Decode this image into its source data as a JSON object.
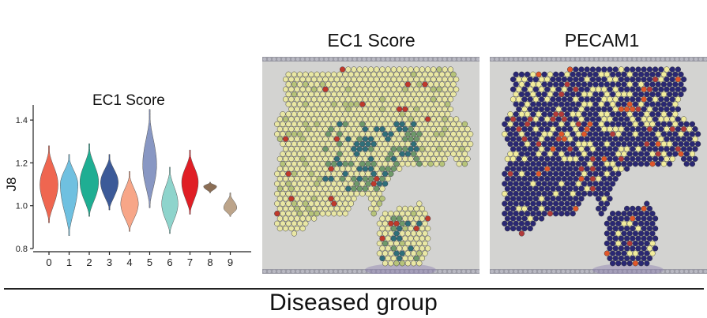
{
  "violin_panel": {
    "title": "EC1 Score",
    "ylabel": "J8"
  },
  "spatial_panels": [
    {
      "title": "EC1 Score"
    },
    {
      "title": "PECAM1"
    }
  ],
  "group_label": "Diseased group",
  "chart_data": [
    {
      "type": "violin",
      "title": "EC1 Score",
      "xlabel": "",
      "ylabel": "J8",
      "ylim": [
        0.8,
        1.5
      ],
      "yticks": [
        0.8,
        1.0,
        1.2,
        1.4
      ],
      "categories": [
        "0",
        "1",
        "2",
        "3",
        "4",
        "5",
        "6",
        "7",
        "8",
        "9"
      ],
      "colors": [
        "#ef6650",
        "#6fc0e0",
        "#1fae93",
        "#3c5a98",
        "#f7a688",
        "#8897c3",
        "#8ed4cc",
        "#e01e25",
        "#8b6e55",
        "#bca48a"
      ],
      "distributions": [
        {
          "category": "0",
          "min": 0.92,
          "max": 1.28,
          "median": 1.1,
          "width": 0.72
        },
        {
          "category": "1",
          "min": 0.86,
          "max": 1.24,
          "median": 1.1,
          "width": 0.7
        },
        {
          "category": "2",
          "min": 0.95,
          "max": 1.29,
          "median": 1.11,
          "width": 0.74
        },
        {
          "category": "3",
          "min": 0.98,
          "max": 1.24,
          "median": 1.11,
          "width": 0.7
        },
        {
          "category": "4",
          "min": 0.88,
          "max": 1.16,
          "median": 1.01,
          "width": 0.7
        },
        {
          "category": "5",
          "min": 0.99,
          "max": 1.45,
          "median": 1.19,
          "width": 0.55
        },
        {
          "category": "6",
          "min": 0.87,
          "max": 1.18,
          "median": 1.01,
          "width": 0.65
        },
        {
          "category": "7",
          "min": 0.96,
          "max": 1.26,
          "median": 1.11,
          "width": 0.66
        },
        {
          "category": "8",
          "min": 1.06,
          "max": 1.11,
          "median": 1.09,
          "width": 0.52
        },
        {
          "category": "9",
          "min": 0.95,
          "max": 1.06,
          "median": 0.99,
          "width": 0.52
        }
      ]
    }
  ]
}
